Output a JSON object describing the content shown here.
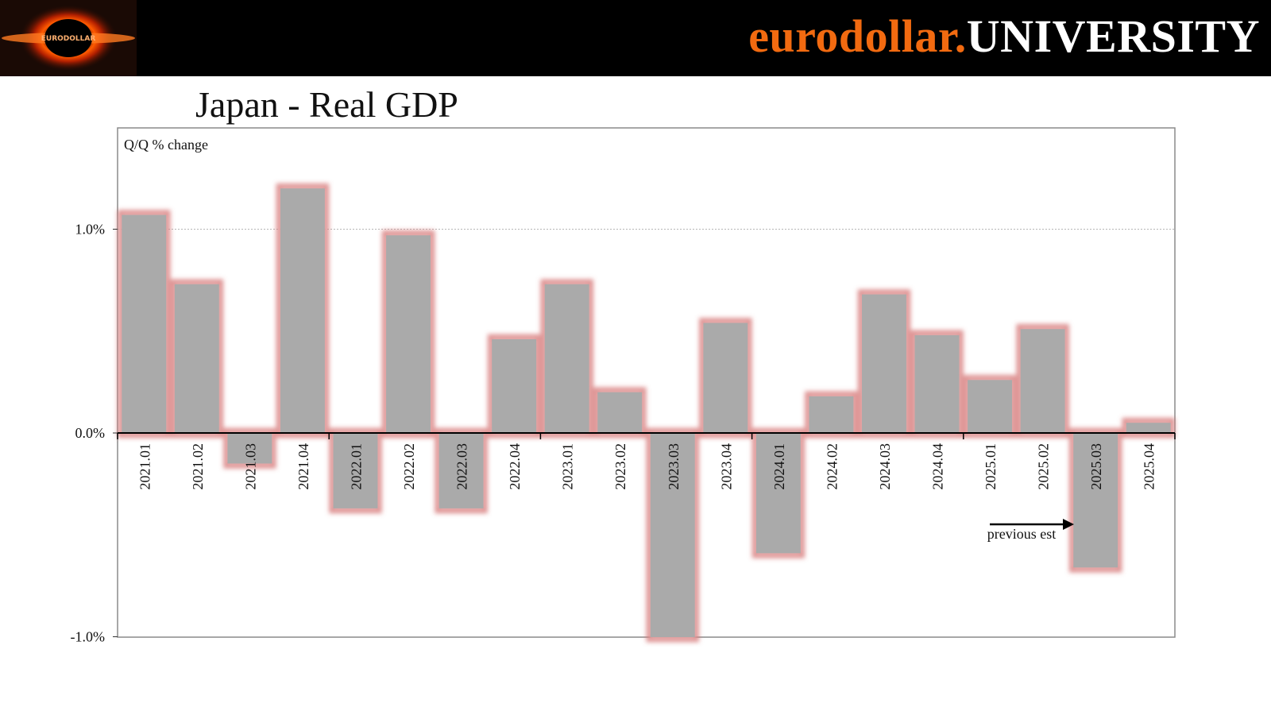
{
  "header": {
    "brand_part1": "eurodollar.",
    "brand_part2": "UNIVERSITY",
    "logo_text": "EURODOLLAR",
    "brand_color": "#f26a10"
  },
  "page": {
    "title": "Japan - Real GDP"
  },
  "chart_data": {
    "type": "bar",
    "title": "Japan - Real GDP",
    "ylabel": "Q/Q % change",
    "xlabel": "",
    "ylim": [
      -1.0,
      1.5
    ],
    "yticks": [
      {
        "value": 1.0,
        "label": "1.0%"
      },
      {
        "value": 0.0,
        "label": "0.0%"
      },
      {
        "value": -1.0,
        "label": "-1.0%"
      }
    ],
    "gridlines": [
      1.0
    ],
    "categories": [
      "2021.01",
      "2021.02",
      "2021.03",
      "2021.04",
      "2022.01",
      "2022.02",
      "2022.03",
      "2022.04",
      "2023.01",
      "2023.02",
      "2023.03",
      "2023.04",
      "2024.01",
      "2024.02",
      "2024.03",
      "2024.04",
      "2025.01",
      "2025.02",
      "2025.03",
      "2025.04"
    ],
    "series": [
      {
        "values": [
          1.07,
          0.73,
          -0.15,
          1.2,
          -0.37,
          0.97,
          -0.37,
          0.46,
          0.73,
          0.2,
          -1.05,
          0.54,
          -0.59,
          0.18,
          0.68,
          0.48,
          0.26,
          0.51,
          -0.66,
          0.05
        ],
        "color": "#aaaaaa",
        "glow_color": "#d06464"
      }
    ],
    "previous_estimate": {
      "values": [
        1.07,
        0.73,
        -0.15,
        1.2,
        -0.37,
        0.97,
        -0.37,
        0.46,
        0.73,
        0.2,
        -1.05,
        0.54,
        -0.59,
        0.18,
        0.68,
        0.48,
        0.26,
        0.51,
        -0.66,
        0.05
      ]
    },
    "annotation": {
      "text": "previous est",
      "points_to": "2025.03"
    }
  }
}
